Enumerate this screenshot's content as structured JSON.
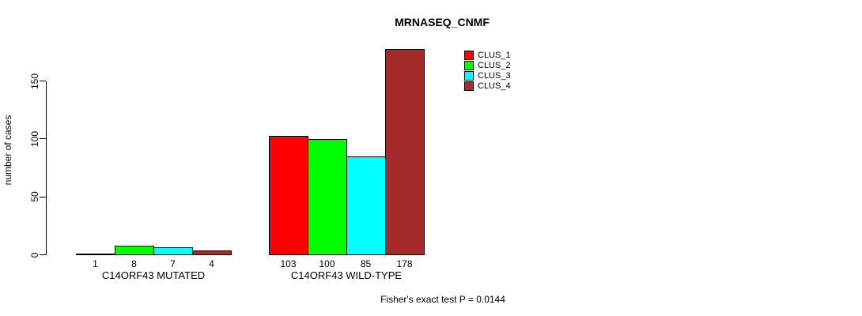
{
  "title": "MRNASEQ_CNMF",
  "footer": "Fisher's exact test P = 0.0144",
  "axis_color": "#000000",
  "background_color": "#ffffff",
  "legend": {
    "items": [
      {
        "label": "CLUS_1",
        "color": "#FF0000"
      },
      {
        "label": "CLUS_2",
        "color": "#00FF00"
      },
      {
        "label": "CLUS_3",
        "color": "#00FFFF"
      },
      {
        "label": "CLUS_4",
        "color": "#A52A2A"
      }
    ]
  },
  "chart_data": {
    "type": "bar",
    "title": "MRNASEQ_CNMF",
    "xlabel": "",
    "ylabel": "number of cases",
    "categories": [
      "C14ORF43 MUTATED",
      "C14ORF43 WILD-TYPE"
    ],
    "series": [
      {
        "name": "CLUS_1",
        "color": "#FF0000",
        "values": [
          1,
          103
        ]
      },
      {
        "name": "CLUS_2",
        "color": "#00FF00",
        "values": [
          8,
          100
        ]
      },
      {
        "name": "CLUS_3",
        "color": "#00FFFF",
        "values": [
          7,
          85
        ]
      },
      {
        "name": "CLUS_4",
        "color": "#A52A2A",
        "values": [
          4,
          178
        ]
      }
    ],
    "bar_value_labels": [
      [
        "1",
        "8",
        "7",
        "4"
      ],
      [
        "103",
        "100",
        "85",
        "178"
      ]
    ],
    "yticks": [
      0,
      50,
      100,
      150
    ],
    "ylim": [
      0,
      183
    ],
    "grid": false,
    "legend_position": "top-right",
    "annotation": "Fisher's exact test P = 0.0144"
  }
}
